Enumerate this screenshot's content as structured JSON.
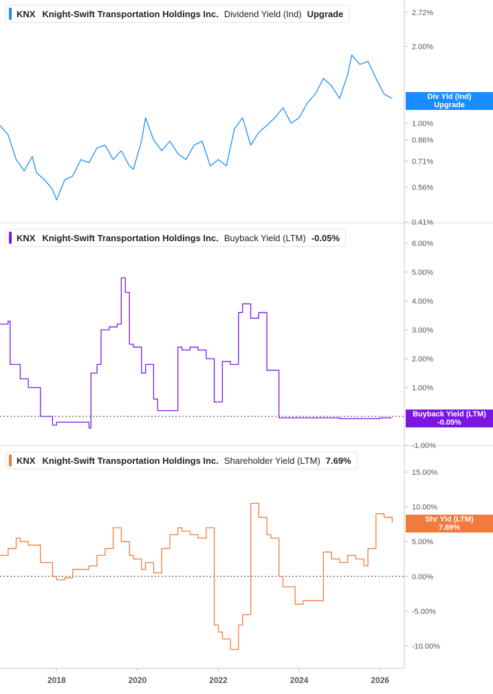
{
  "x_axis": {
    "ticks": [
      "2018",
      "2020",
      "2022",
      "2024",
      "2026"
    ],
    "tick_years": [
      2018,
      2020,
      2022,
      2024,
      2026
    ],
    "range": [
      2016.6,
      2026.6
    ]
  },
  "chart_data": [
    {
      "type": "line",
      "scale": "log",
      "legend": {
        "ticker": "KNX",
        "company": "Knight-Swift Transportation Holdings Inc.",
        "metric": "Dividend Yield (Ind)",
        "value": "Upgrade"
      },
      "color": "#1a8cff",
      "y_ticks": [
        "2.72%",
        "2.00%",
        "1.00%",
        "0.86%",
        "0.71%",
        "0.56%",
        "0.41%"
      ],
      "y_tick_values": [
        2.72,
        2.0,
        1.0,
        0.86,
        0.71,
        0.56,
        0.41
      ],
      "ylim": [
        0.41,
        3.0
      ],
      "end_label": [
        "Div Yld (Ind)",
        "Upgrade"
      ],
      "end_value": 1.25,
      "series": [
        {
          "x": [
            2016.6,
            2016.8,
            2017.0,
            2017.2,
            2017.4,
            2017.5,
            2017.7,
            2017.9,
            2018.0,
            2018.2,
            2018.4,
            2018.6,
            2018.8,
            2019.0,
            2019.2,
            2019.4,
            2019.6,
            2019.8,
            2019.9,
            2020.1,
            2020.2,
            2020.4,
            2020.6,
            2020.8,
            2021.0,
            2021.2,
            2021.4,
            2021.6,
            2021.8,
            2022.0,
            2022.2,
            2022.4,
            2022.6,
            2022.8,
            2023.0,
            2023.2,
            2023.4,
            2023.6,
            2023.8,
            2024.0,
            2024.2,
            2024.4,
            2024.6,
            2024.8,
            2025.0,
            2025.2,
            2025.3,
            2025.5,
            2025.7,
            2025.9,
            2026.1,
            2026.3
          ],
          "y": [
            0.98,
            0.9,
            0.72,
            0.65,
            0.74,
            0.64,
            0.6,
            0.55,
            0.5,
            0.6,
            0.62,
            0.72,
            0.7,
            0.8,
            0.82,
            0.72,
            0.78,
            0.68,
            0.66,
            0.85,
            1.05,
            0.86,
            0.78,
            0.85,
            0.76,
            0.72,
            0.82,
            0.85,
            0.68,
            0.72,
            0.68,
            0.95,
            1.05,
            0.82,
            0.92,
            0.98,
            1.05,
            1.15,
            1.0,
            1.05,
            1.2,
            1.3,
            1.5,
            1.4,
            1.25,
            1.55,
            1.85,
            1.7,
            1.75,
            1.5,
            1.3,
            1.25
          ]
        }
      ]
    },
    {
      "type": "line",
      "step": true,
      "legend": {
        "ticker": "KNX",
        "company": "Knight-Swift Transportation Holdings Inc.",
        "metric": "Buyback Yield (LTM)",
        "value": "-0.05%"
      },
      "color": "#7b16e0",
      "y_ticks": [
        "6.00%",
        "5.00%",
        "4.00%",
        "3.00%",
        "2.00%",
        "1.00%",
        "-1.00%"
      ],
      "y_tick_values": [
        6,
        5,
        4,
        3,
        2,
        1,
        -1
      ],
      "ylim": [
        -1.0,
        6.0
      ],
      "zero_line": true,
      "end_label": [
        "Buyback Yield (LTM)",
        "-0.05%"
      ],
      "end_value": -0.05,
      "series": [
        {
          "x": [
            2016.6,
            2016.8,
            2016.85,
            2017.0,
            2017.1,
            2017.3,
            2017.6,
            2017.9,
            2018.0,
            2018.4,
            2018.8,
            2018.85,
            2019.0,
            2019.1,
            2019.3,
            2019.5,
            2019.6,
            2019.7,
            2019.8,
            2019.9,
            2020.1,
            2020.2,
            2020.4,
            2020.5,
            2020.6,
            2021.0,
            2021.1,
            2021.3,
            2021.5,
            2021.7,
            2021.9,
            2022.0,
            2022.1,
            2022.3,
            2022.5,
            2022.6,
            2022.8,
            2023.0,
            2023.2,
            2023.3,
            2023.5,
            2023.6,
            2024.0,
            2025.0,
            2026.0,
            2026.3
          ],
          "y": [
            3.2,
            3.3,
            1.8,
            1.8,
            1.3,
            1.0,
            0.0,
            -0.3,
            -0.2,
            -0.2,
            -0.4,
            1.5,
            1.8,
            3.0,
            3.1,
            3.2,
            4.8,
            4.3,
            2.5,
            2.4,
            1.5,
            1.8,
            0.6,
            0.2,
            0.2,
            2.4,
            2.3,
            2.4,
            2.3,
            2.0,
            0.5,
            0.5,
            1.9,
            1.8,
            3.6,
            3.9,
            3.4,
            3.6,
            1.6,
            1.6,
            -0.05,
            -0.05,
            -0.05,
            -0.08,
            -0.05,
            -0.05
          ]
        }
      ]
    },
    {
      "type": "line",
      "step": true,
      "legend": {
        "ticker": "KNX",
        "company": "Knight-Swift Transportation Holdings Inc.",
        "metric": "Shareholder Yield (LTM)",
        "value": "7.69%"
      },
      "color": "#f07b3c",
      "y_ticks": [
        "15.00%",
        "10.00%",
        "5.00%",
        "0.00%",
        "-5.00%",
        "-10.00%"
      ],
      "y_tick_values": [
        15,
        10,
        5,
        0,
        -5,
        -10
      ],
      "ylim": [
        -13.0,
        17.0
      ],
      "zero_line": true,
      "end_label": [
        "Shr Yld (LTM)",
        "7.69%"
      ],
      "end_value": 7.69,
      "series": [
        {
          "x": [
            2016.6,
            2016.8,
            2017.0,
            2017.1,
            2017.3,
            2017.6,
            2017.9,
            2018.0,
            2018.2,
            2018.4,
            2018.8,
            2019.0,
            2019.2,
            2019.4,
            2019.6,
            2019.8,
            2019.9,
            2020.1,
            2020.2,
            2020.4,
            2020.5,
            2020.6,
            2020.8,
            2021.0,
            2021.1,
            2021.3,
            2021.5,
            2021.7,
            2021.9,
            2022.0,
            2022.1,
            2022.3,
            2022.5,
            2022.6,
            2022.8,
            2023.0,
            2023.2,
            2023.3,
            2023.5,
            2023.6,
            2023.9,
            2024.1,
            2024.4,
            2024.6,
            2024.8,
            2025.0,
            2025.2,
            2025.4,
            2025.6,
            2025.7,
            2025.9,
            2026.1,
            2026.3
          ],
          "y": [
            3.0,
            4.0,
            5.5,
            5.0,
            4.5,
            2.0,
            0.0,
            -0.5,
            -0.2,
            1.0,
            1.5,
            3.0,
            4.0,
            7.0,
            5.0,
            3.0,
            2.5,
            1.0,
            2.0,
            0.5,
            0.5,
            4.0,
            6.0,
            7.0,
            6.5,
            6.0,
            5.5,
            7.0,
            -7.0,
            -8.0,
            -9.0,
            -10.5,
            -7.0,
            -5.5,
            10.5,
            8.5,
            6.0,
            5.5,
            0.0,
            -1.5,
            -4.0,
            -3.5,
            -3.5,
            3.5,
            2.5,
            2.0,
            3.0,
            2.5,
            1.5,
            4.0,
            9.0,
            8.5,
            7.69
          ]
        }
      ]
    }
  ]
}
